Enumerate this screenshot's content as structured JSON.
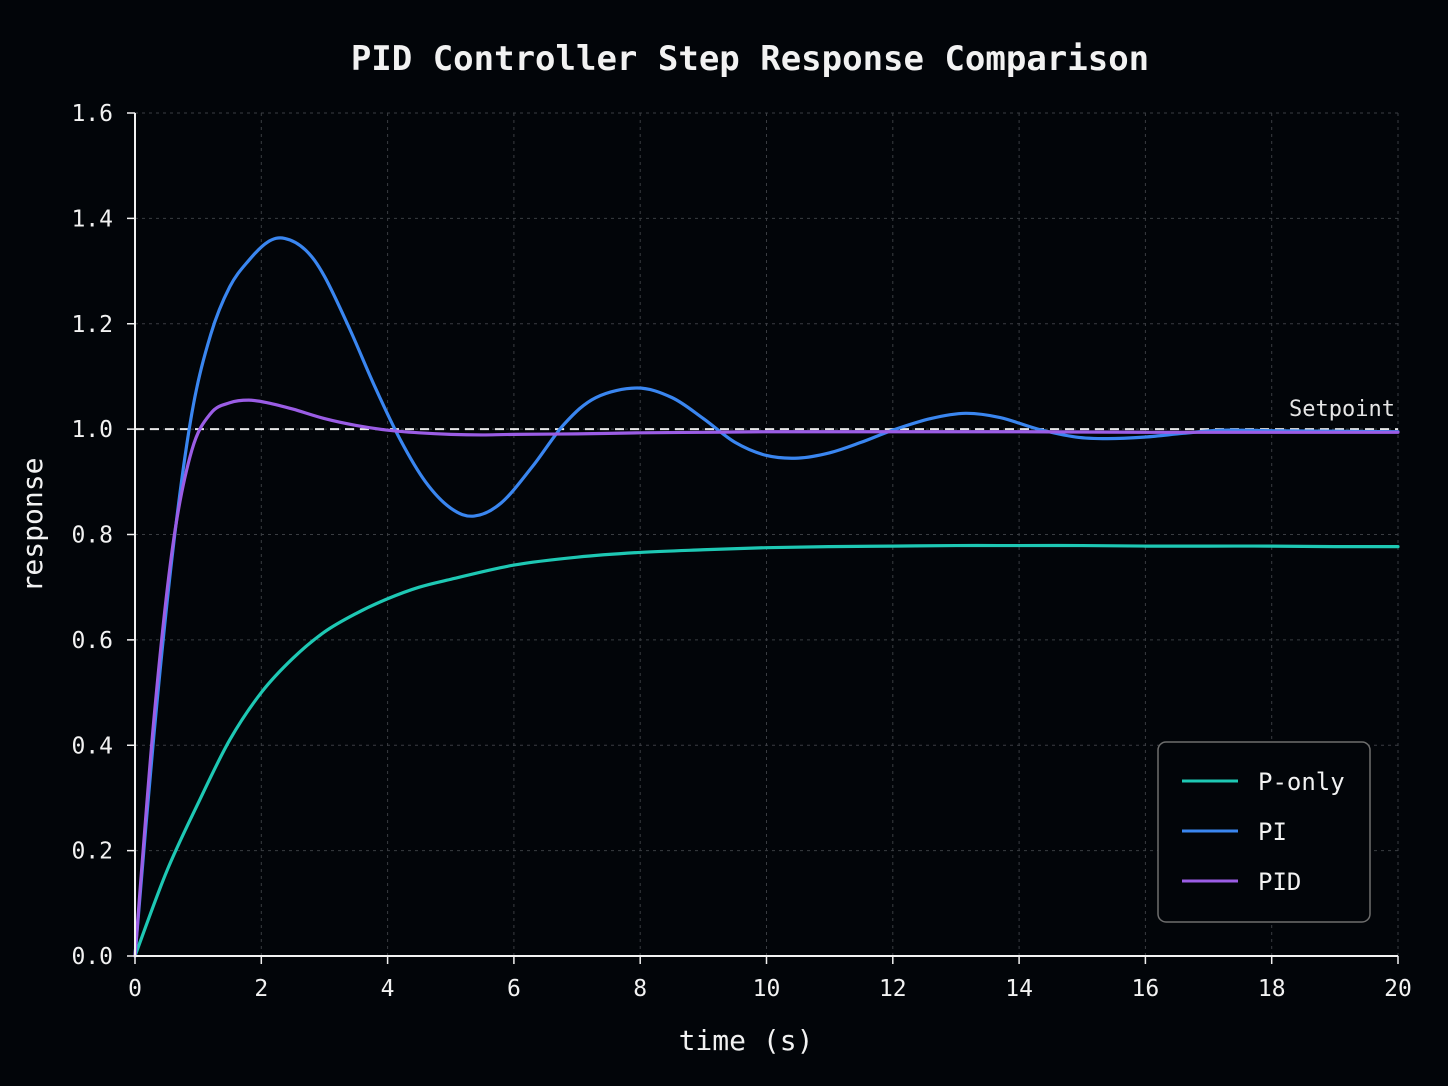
{
  "chart_data": {
    "type": "line",
    "title": "PID Controller Step Response Comparison",
    "xlabel": "time (s)",
    "ylabel": "response",
    "xlim": [
      0,
      20
    ],
    "ylim": [
      0,
      1.6
    ],
    "xticks": [
      0,
      2,
      4,
      6,
      8,
      10,
      12,
      14,
      16,
      18,
      20
    ],
    "yticks": [
      0.0,
      0.2,
      0.4,
      0.6,
      0.8,
      1.0,
      1.2,
      1.4,
      1.6
    ],
    "xtick_labels": [
      "0",
      "2",
      "4",
      "6",
      "8",
      "10",
      "12",
      "14",
      "16",
      "18",
      "20"
    ],
    "ytick_labels": [
      "0.0",
      "0.2",
      "0.4",
      "0.6",
      "0.8",
      "1.0",
      "1.2",
      "1.4",
      "1.6"
    ],
    "grid": true,
    "legend_position": "bottom-right",
    "background": "#020509",
    "series": [
      {
        "name": "P-only",
        "color": "#1ec8b4",
        "x": [
          0,
          0.5,
          1,
          1.5,
          2,
          2.5,
          3,
          3.5,
          4,
          4.5,
          5,
          6,
          7,
          8,
          9,
          10,
          11,
          12,
          13,
          14,
          15,
          16,
          17,
          18,
          19,
          20
        ],
        "y": [
          0,
          0.16,
          0.29,
          0.41,
          0.5,
          0.565,
          0.615,
          0.65,
          0.678,
          0.7,
          0.715,
          0.742,
          0.757,
          0.766,
          0.771,
          0.775,
          0.777,
          0.778,
          0.779,
          0.779,
          0.779,
          0.778,
          0.778,
          0.778,
          0.777,
          0.777
        ]
      },
      {
        "name": "PI",
        "color": "#3a86f0",
        "x": [
          0,
          0.3,
          0.6,
          0.9,
          1.2,
          1.5,
          1.8,
          2.1,
          2.37,
          2.7,
          3.0,
          3.4,
          3.8,
          4.2,
          4.6,
          5.0,
          5.37,
          5.8,
          6.3,
          6.8,
          7.3,
          7.95,
          8.5,
          9.0,
          9.5,
          10.0,
          10.5,
          11.0,
          11.5,
          12.0,
          12.6,
          13.15,
          13.7,
          14.3,
          14.9,
          15.4,
          16.0,
          16.6,
          17.2,
          18.0,
          19.0,
          20.0
        ],
        "y": [
          0,
          0.42,
          0.77,
          1.03,
          1.18,
          1.27,
          1.32,
          1.355,
          1.362,
          1.34,
          1.29,
          1.19,
          1.08,
          0.98,
          0.9,
          0.85,
          0.835,
          0.86,
          0.93,
          1.01,
          1.06,
          1.078,
          1.06,
          1.02,
          0.975,
          0.95,
          0.945,
          0.955,
          0.975,
          0.998,
          1.02,
          1.03,
          1.022,
          1.0,
          0.985,
          0.982,
          0.985,
          0.992,
          0.998,
          0.997,
          0.996,
          0.995
        ]
      },
      {
        "name": "PID",
        "color": "#9b5de5",
        "x": [
          0,
          0.3,
          0.6,
          0.9,
          1.2,
          1.5,
          1.8,
          2.1,
          2.5,
          3.0,
          3.5,
          4.0,
          4.5,
          5.0,
          5.5,
          6.0,
          7.0,
          8.0,
          9.0,
          10.0,
          12.0,
          14.0,
          16.0,
          18.0,
          20.0
        ],
        "y": [
          0,
          0.45,
          0.78,
          0.96,
          1.03,
          1.05,
          1.055,
          1.05,
          1.038,
          1.02,
          1.007,
          0.998,
          0.993,
          0.99,
          0.989,
          0.99,
          0.991,
          0.993,
          0.994,
          0.995,
          0.995,
          0.995,
          0.994,
          0.994,
          0.994
        ]
      }
    ],
    "reference_line": {
      "y": 1.0,
      "label": "Setpoint",
      "color": "#ffffff",
      "style": "dashed"
    }
  }
}
